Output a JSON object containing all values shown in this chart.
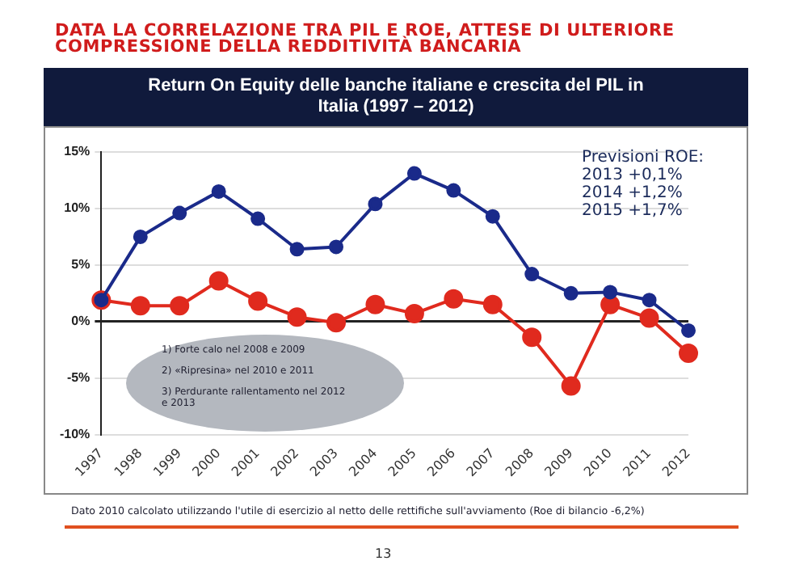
{
  "chart_data": {
    "type": "line",
    "title": "DATA LA CORRELAZIONE TRA PIL E ROE, ATTESE DI ULTERIORE COMPRESSIONE DELLA REDDITIVITÀ BANCARIA",
    "subtitle": "Return On Equity delle banche italiane e crescita del PIL in Italia (1997 – 2012)",
    "categories": [
      "1997",
      "1998",
      "1999",
      "2000",
      "2001",
      "2002",
      "2003",
      "2004",
      "2005",
      "2006",
      "2007",
      "2008",
      "2009",
      "2010",
      "2011",
      "2012"
    ],
    "series": [
      {
        "color": "#1a2a8a",
        "values": [
          1.9,
          7.5,
          9.6,
          11.5,
          9.1,
          6.4,
          6.6,
          10.4,
          13.1,
          11.6,
          9.3,
          4.2,
          2.5,
          2.6,
          1.9,
          -0.8
        ]
      },
      {
        "color": "#e02a1e",
        "values": [
          1.9,
          1.4,
          1.4,
          3.6,
          1.8,
          0.4,
          -0.1,
          1.5,
          0.7,
          2.0,
          1.5,
          -1.4,
          -5.7,
          1.5,
          0.3,
          -2.8
        ]
      }
    ],
    "ylim": [
      -10,
      15
    ],
    "yticks": [
      {
        "value": -10,
        "label": "-10%"
      },
      {
        "value": -5,
        "label": "-5%"
      },
      {
        "value": 0,
        "label": "0%"
      },
      {
        "value": 5,
        "label": "5%"
      },
      {
        "value": 10,
        "label": "10%"
      },
      {
        "value": 15,
        "label": "15%"
      }
    ],
    "grid": "y",
    "legend": false,
    "marker": "circle",
    "line_style": "solid",
    "annotations": [
      "Previsioni ROE:\n2013 +0,1%\n2014 +1,2%\n2015 +1,7%",
      "1) Forte calo nel 2008 e 2009\n\n2) «Ripresina» nel 2010 e 2011\n\n3) Perdurante rallentamento nel 2012 e 2013",
      "Dato 2010 calcolato utilizzando l'utile di esercizio al netto delle rettifiche sull'avviamento (Roe di bilancio -6,2%)",
      "13"
    ]
  }
}
